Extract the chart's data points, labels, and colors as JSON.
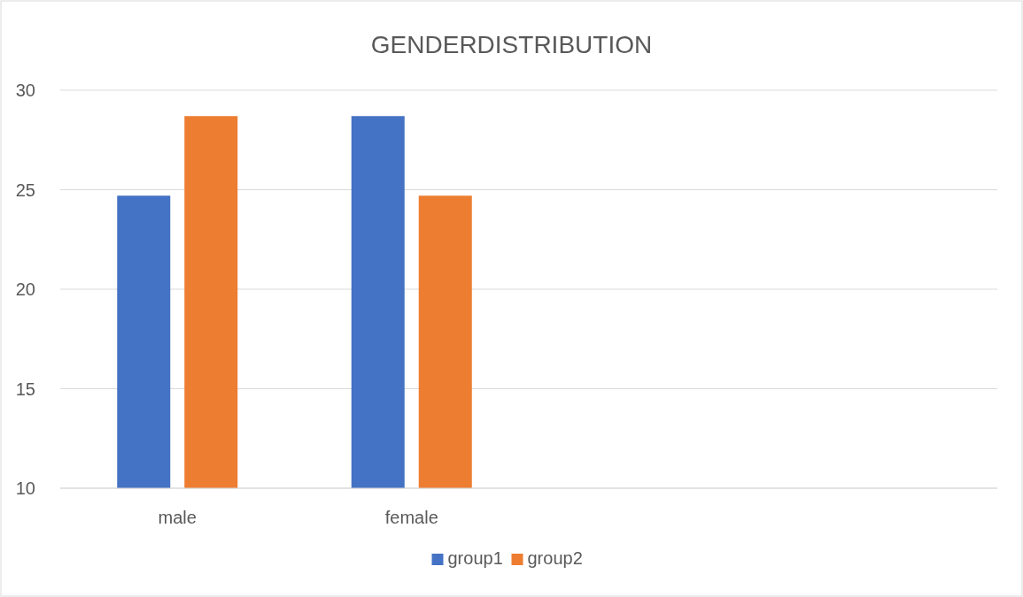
{
  "chart_data": {
    "type": "bar",
    "title": "GENDERDISTRIBUTION",
    "categories": [
      "male",
      "female",
      null,
      null
    ],
    "series": [
      {
        "name": "group1",
        "color": "#4472c4",
        "values": [
          24.7,
          28.7,
          null,
          null
        ]
      },
      {
        "name": "group2",
        "color": "#ed7d31",
        "values": [
          28.7,
          24.7,
          null,
          null
        ]
      }
    ],
    "ylim": [
      10,
      30
    ],
    "yticks": [
      10,
      15,
      20,
      25,
      30
    ],
    "grid": "y",
    "legend": "bottom"
  }
}
